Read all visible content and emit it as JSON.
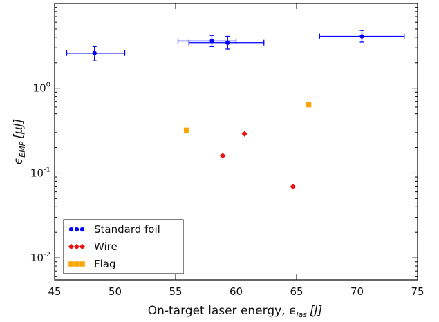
{
  "chart_data": {
    "type": "scatter",
    "xlabel": "On-target laser energy, ϵ",
    "xlabel_sub": "las",
    "xlabel_unit": "[J]",
    "ylabel": "ϵ",
    "ylabel_sub": "EMP",
    "ylabel_unit": "[μJ]",
    "xlim": [
      45,
      75
    ],
    "ylim": [
      0.0055,
      10
    ],
    "yscale": "log",
    "x_ticks": [
      45,
      50,
      55,
      60,
      65,
      70,
      75
    ],
    "x_tick_labels": [
      "45",
      "50",
      "55",
      "60",
      "65",
      "70",
      "75"
    ],
    "y_ticks": [
      0.01,
      0.1,
      1
    ],
    "y_tick_labels": [
      {
        "base": "10",
        "exp": "-2"
      },
      {
        "base": "10",
        "exp": "-1"
      },
      {
        "base": "10",
        "exp": "0"
      }
    ],
    "grid": false,
    "legend_position": "lower-left",
    "series": [
      {
        "name": "Standard foil",
        "marker": "circle",
        "color": "#0000ff",
        "points": [
          {
            "x": 48.3,
            "y": 2.6,
            "xerr_low": 46.0,
            "xerr_high": 50.8,
            "yerr_low": 2.1,
            "yerr_high": 3.1
          },
          {
            "x": 58.0,
            "y": 3.6,
            "xerr_low": 55.2,
            "xerr_high": 60.0,
            "yerr_low": 3.1,
            "yerr_high": 4.2
          },
          {
            "x": 59.3,
            "y": 3.45,
            "xerr_low": 56.1,
            "xerr_high": 62.3,
            "yerr_low": 2.9,
            "yerr_high": 4.1
          },
          {
            "x": 70.4,
            "y": 4.1,
            "xerr_low": 66.9,
            "xerr_high": 73.9,
            "yerr_low": 3.5,
            "yerr_high": 4.8
          }
        ]
      },
      {
        "name": "Wire",
        "marker": "diamond",
        "color": "#ee1111",
        "points": [
          {
            "x": 58.9,
            "y": 0.16
          },
          {
            "x": 60.7,
            "y": 0.29
          },
          {
            "x": 64.7,
            "y": 0.069
          }
        ]
      },
      {
        "name": "Flag",
        "marker": "square",
        "color": "#ffa500",
        "points": [
          {
            "x": 55.9,
            "y": 0.32
          },
          {
            "x": 66.0,
            "y": 0.64
          }
        ]
      }
    ]
  }
}
